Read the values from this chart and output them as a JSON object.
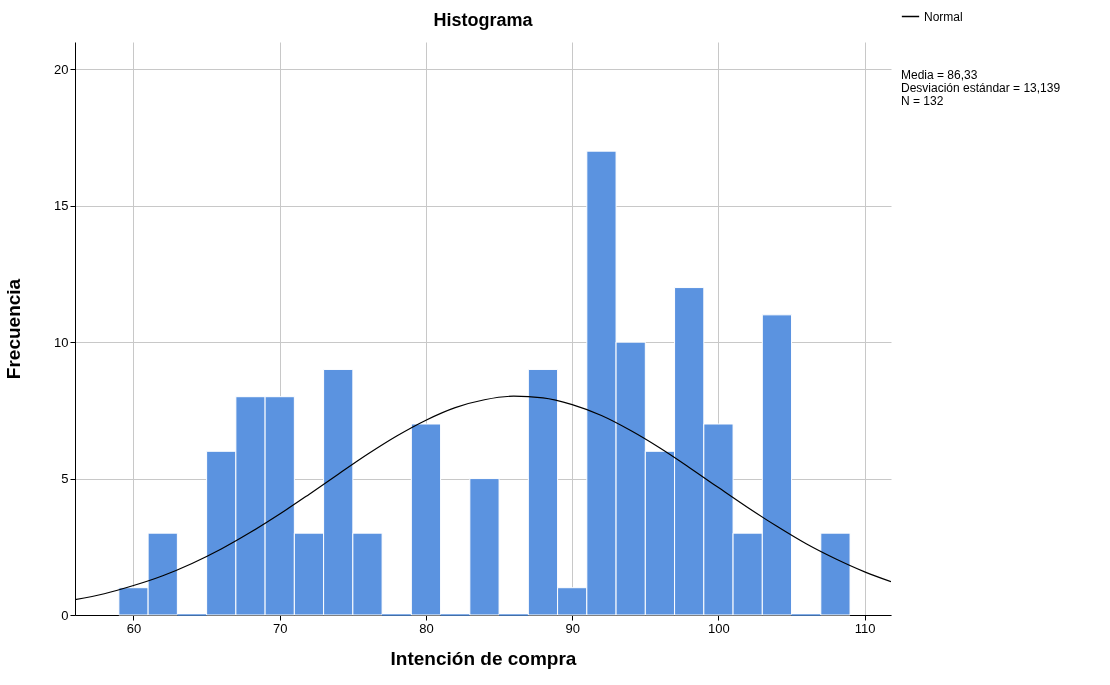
{
  "chart_data": {
    "type": "histogram",
    "title": "Histograma",
    "xlabel": "Intención de compra",
    "ylabel": "Frecuencia",
    "bins": [
      59,
      61,
      63,
      65,
      67,
      69,
      71,
      73,
      75,
      77,
      79,
      81,
      83,
      85,
      87,
      89,
      91,
      93,
      95,
      97,
      99,
      101,
      103,
      105,
      107,
      109
    ],
    "series": [
      {
        "type": "histogram",
        "color": "#5b93e0",
        "values": [
          1,
          3,
          0,
          6,
          8,
          8,
          3,
          9,
          3,
          0,
          7,
          0,
          5,
          0,
          9,
          1,
          17,
          10,
          6,
          12,
          7,
          3,
          11,
          0,
          3
        ]
      },
      {
        "type": "line",
        "name": "Normal",
        "color": "#000000",
        "x": [
          56,
          58,
          60,
          62,
          64,
          66,
          68,
          70,
          72,
          74,
          76,
          78,
          80,
          82,
          84,
          86,
          88,
          90,
          92,
          94,
          96,
          98,
          100,
          102,
          104,
          106,
          108,
          110,
          111.8
        ],
        "values": [
          0.56,
          0.78,
          1.08,
          1.44,
          1.89,
          2.42,
          3.03,
          3.7,
          4.42,
          5.16,
          5.89,
          6.56,
          7.14,
          7.6,
          7.89,
          8.02,
          7.96,
          7.71,
          7.31,
          6.76,
          6.12,
          5.41,
          4.67,
          3.94,
          3.25,
          2.61,
          2.06,
          1.58,
          1.22
        ]
      }
    ],
    "annotations": [
      "Media = 86,33",
      "Desviación estándar = 13,139",
      "N = 132"
    ],
    "xlim": [
      56,
      111.8
    ],
    "ylim": [
      0,
      21
    ],
    "xticks": [
      60,
      70,
      80,
      90,
      100,
      110
    ],
    "yticks": [
      0,
      5,
      10,
      15,
      20
    ],
    "grid": true,
    "legend": "top right",
    "marker": "none",
    "line_style": "solid"
  }
}
